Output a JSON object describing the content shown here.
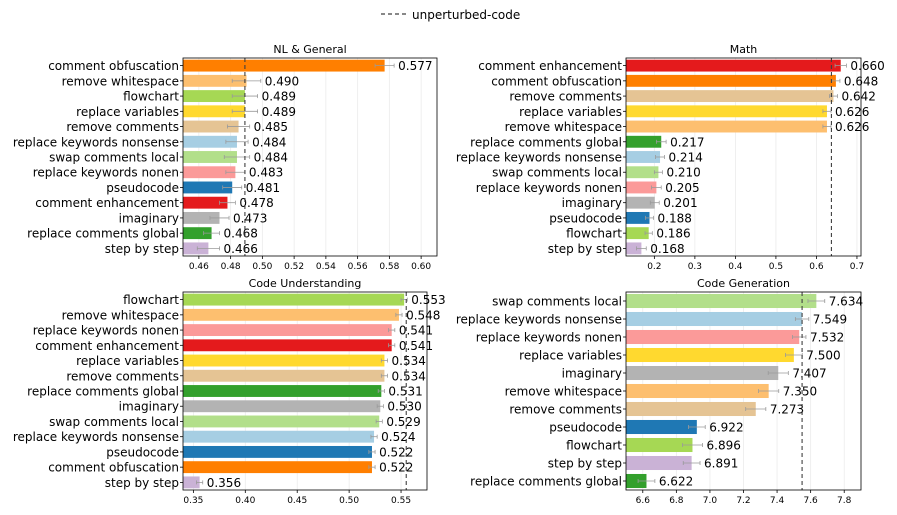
{
  "legend": {
    "label": "unperturbed-code",
    "placement": "top-center"
  },
  "colors": {
    "comment enhancement": "#e41a1c",
    "comment obfuscation": "#ff7f00",
    "remove comments": "#e5c494",
    "remove whitespace": "#fdbf6f",
    "replace variables": "#ffd92f",
    "replace comments global": "#33a02c",
    "replace keywords nonsense": "#a6cee3",
    "swap comments local": "#b2df8a",
    "replace keywords nonen": "#fb9a99",
    "imaginary": "#b3b3b3",
    "pseudocode": "#1f78b4",
    "flowchart": "#a6d854",
    "step by step": "#cab2d6"
  },
  "chart_data": [
    {
      "type": "bar",
      "orientation": "horizontal",
      "title": "NL & General",
      "xlim": [
        0.45,
        0.61
      ],
      "ticks": [
        0.46,
        0.48,
        0.5,
        0.52,
        0.54,
        0.56,
        0.58,
        0.6
      ],
      "tick_labels": [
        "0.46",
        "0.48",
        "0.50",
        "0.52",
        "0.54",
        "0.56",
        "0.58",
        "0.60"
      ],
      "baseline": 0.489,
      "categories": [
        "comment obfuscation",
        "remove whitespace",
        "flowchart",
        "replace variables",
        "remove comments",
        "replace keywords nonsense",
        "swap comments local",
        "replace keywords nonen",
        "pseudocode",
        "comment enhancement",
        "imaginary",
        "replace comments global",
        "step by step"
      ],
      "values": [
        0.577,
        0.49,
        0.489,
        0.489,
        0.485,
        0.484,
        0.484,
        0.483,
        0.481,
        0.478,
        0.473,
        0.468,
        0.466
      ],
      "value_labels": [
        "0.577",
        "0.490",
        "0.489",
        "0.489",
        "0.485",
        "0.484",
        "0.484",
        "0.483",
        "0.481",
        "0.478",
        "0.473",
        "0.468",
        "0.466"
      ],
      "errors": [
        0.006,
        0.009,
        0.008,
        0.008,
        0.007,
        0.007,
        0.008,
        0.006,
        0.006,
        0.005,
        0.006,
        0.005,
        0.007
      ]
    },
    {
      "type": "bar",
      "orientation": "horizontal",
      "title": "Math",
      "xlim": [
        0.13,
        0.71
      ],
      "ticks": [
        0.2,
        0.3,
        0.4,
        0.5,
        0.6,
        0.7
      ],
      "tick_labels": [
        "0.2",
        "0.3",
        "0.4",
        "0.5",
        "0.6",
        "0.7"
      ],
      "baseline": 0.637,
      "categories": [
        "comment enhancement",
        "comment obfuscation",
        "remove comments",
        "replace variables",
        "remove whitespace",
        "replace comments global",
        "replace keywords nonsense",
        "swap comments local",
        "replace keywords nonen",
        "imaginary",
        "pseudocode",
        "flowchart",
        "step by step"
      ],
      "values": [
        0.66,
        0.648,
        0.642,
        0.626,
        0.626,
        0.217,
        0.214,
        0.21,
        0.205,
        0.201,
        0.188,
        0.186,
        0.168
      ],
      "value_labels": [
        "0.660",
        "0.648",
        "0.642",
        "0.626",
        "0.626",
        "0.217",
        "0.214",
        "0.210",
        "0.205",
        "0.201",
        "0.188",
        "0.186",
        "0.168"
      ],
      "errors": [
        0.014,
        0.01,
        0.01,
        0.01,
        0.01,
        0.012,
        0.011,
        0.01,
        0.012,
        0.011,
        0.01,
        0.009,
        0.012
      ]
    },
    {
      "type": "bar",
      "orientation": "horizontal",
      "title": "Code Understanding",
      "xlim": [
        0.34,
        0.575
      ],
      "ticks": [
        0.35,
        0.4,
        0.45,
        0.5,
        0.55
      ],
      "tick_labels": [
        "0.35",
        "0.40",
        "0.45",
        "0.50",
        "0.55"
      ],
      "baseline": 0.555,
      "categories": [
        "flowchart",
        "remove whitespace",
        "replace keywords nonen",
        "comment enhancement",
        "replace variables",
        "remove comments",
        "replace comments global",
        "imaginary",
        "swap comments local",
        "replace keywords nonsense",
        "pseudocode",
        "comment obfuscation",
        "step by step"
      ],
      "values": [
        0.553,
        0.548,
        0.541,
        0.541,
        0.534,
        0.534,
        0.531,
        0.53,
        0.529,
        0.524,
        0.522,
        0.522,
        0.356
      ],
      "value_labels": [
        "0.553",
        "0.548",
        "0.541",
        "0.541",
        "0.534",
        "0.534",
        "0.531",
        "0.530",
        "0.529",
        "0.524",
        "0.522",
        "0.522",
        "0.356"
      ],
      "errors": [
        0.003,
        0.003,
        0.003,
        0.003,
        0.003,
        0.003,
        0.003,
        0.003,
        0.003,
        0.003,
        0.003,
        0.003,
        0.003
      ]
    },
    {
      "type": "bar",
      "orientation": "horizontal",
      "title": "Code Generation",
      "xlim": [
        6.5,
        7.9
      ],
      "ticks": [
        6.6,
        6.8,
        7.0,
        7.2,
        7.4,
        7.6,
        7.8
      ],
      "tick_labels": [
        "6.6",
        "6.8",
        "7.0",
        "7.2",
        "7.4",
        "7.6",
        "7.8"
      ],
      "baseline": 7.549,
      "categories": [
        "swap comments local",
        "replace keywords nonsense",
        "replace keywords nonen",
        "replace variables",
        "imaginary",
        "remove whitespace",
        "remove comments",
        "pseudocode",
        "flowchart",
        "step by step",
        "replace comments global"
      ],
      "values": [
        7.634,
        7.549,
        7.532,
        7.5,
        7.407,
        7.35,
        7.273,
        6.922,
        6.896,
        6.891,
        6.622
      ],
      "value_labels": [
        "7.634",
        "7.549",
        "7.532",
        "7.500",
        "7.407",
        "7.350",
        "7.273",
        "6.922",
        "6.896",
        "6.891",
        "6.622"
      ],
      "errors": [
        0.05,
        0.04,
        0.04,
        0.05,
        0.06,
        0.06,
        0.06,
        0.05,
        0.06,
        0.05,
        0.05
      ]
    }
  ]
}
